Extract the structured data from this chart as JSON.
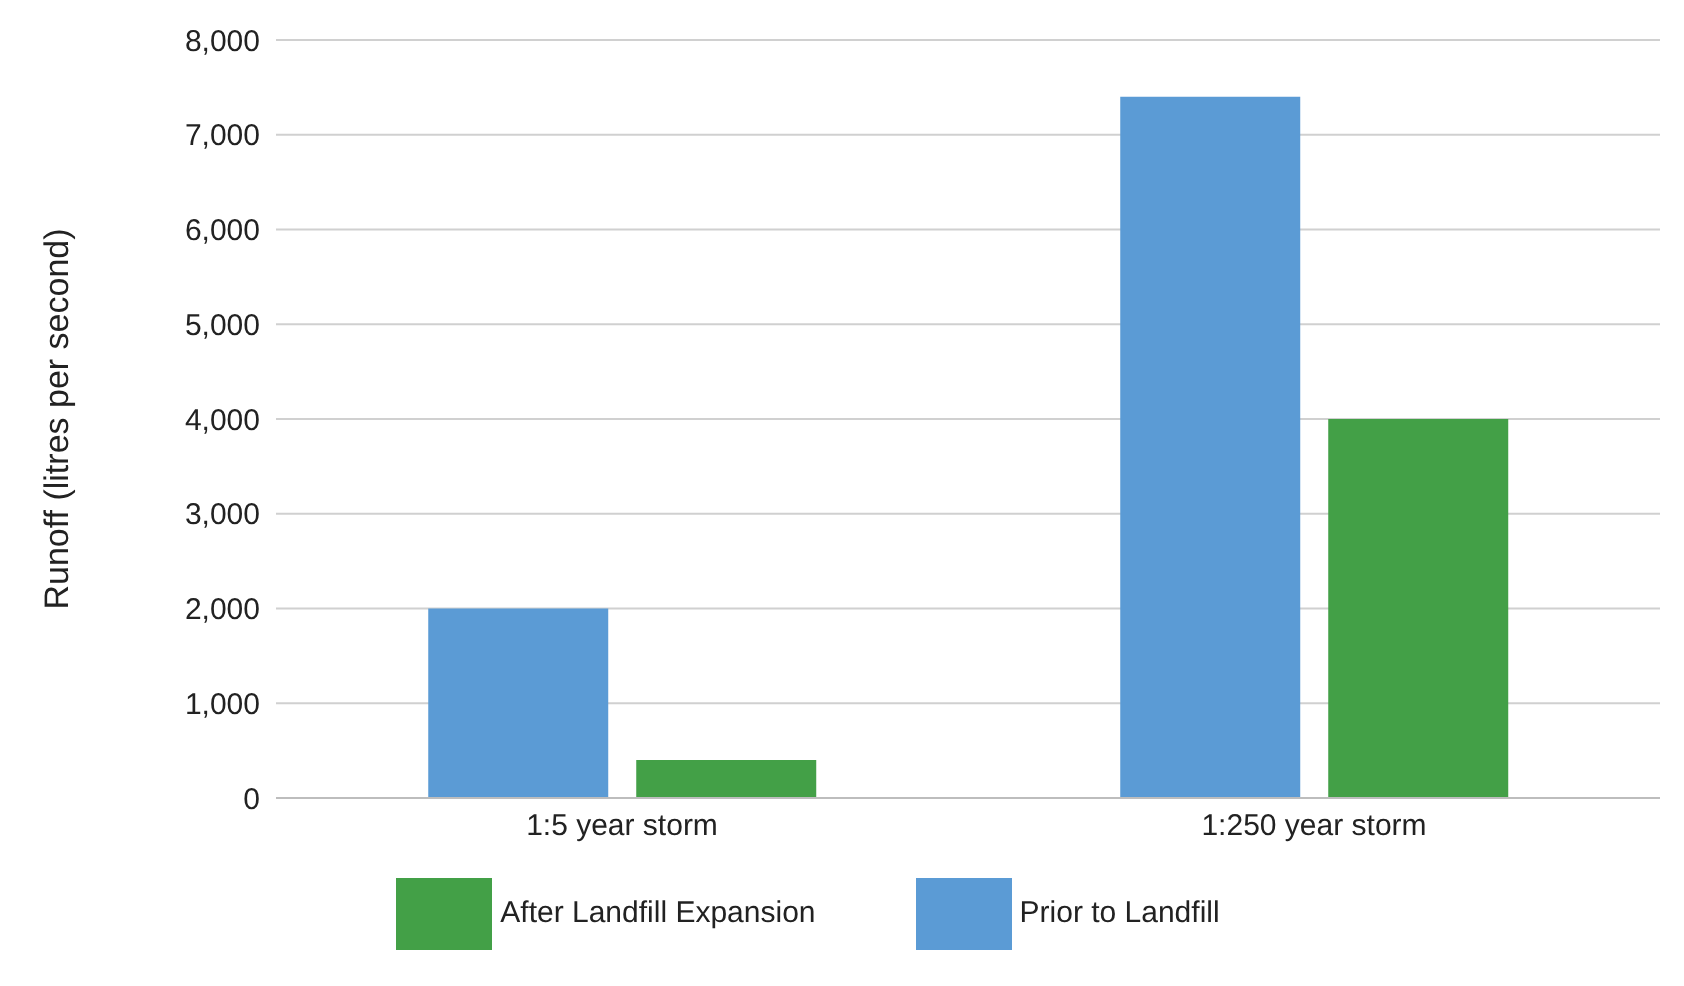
{
  "chart_data": {
    "type": "bar",
    "ylabel": "Runoff (litres per second)",
    "categories": [
      "1:5 year storm",
      "1:250 year storm"
    ],
    "series": [
      {
        "name": "Prior to Landfill",
        "color": "#5b9bd5",
        "values": [
          2000,
          7400
        ]
      },
      {
        "name": "After Landfill Expansion",
        "color": "#43a047",
        "values": [
          400,
          4000
        ]
      }
    ],
    "ylim": [
      0,
      8000
    ],
    "yticks": [
      {
        "value": 0,
        "label": "0"
      },
      {
        "value": 1000,
        "label": "1,000"
      },
      {
        "value": 2000,
        "label": "2,000"
      },
      {
        "value": 3000,
        "label": "3,000"
      },
      {
        "value": 4000,
        "label": "4,000"
      },
      {
        "value": 5000,
        "label": "5,000"
      },
      {
        "value": 6000,
        "label": "6,000"
      },
      {
        "value": 7000,
        "label": "7,000"
      },
      {
        "value": 8000,
        "label": "8,000"
      }
    ],
    "grid": "y",
    "legend": "bottom"
  }
}
